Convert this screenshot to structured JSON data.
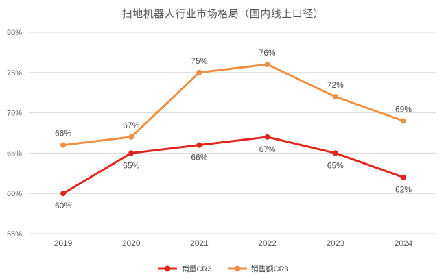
{
  "title": "扫地机器人行业市场格局（国内线上口径）",
  "chart_data": {
    "type": "line",
    "categories": [
      "2019",
      "2020",
      "2021",
      "2022",
      "2023",
      "2024"
    ],
    "series": [
      {
        "name": "销量CR3",
        "values": [
          60,
          65,
          66,
          67,
          65,
          62
        ],
        "color": "#e0251c",
        "label_position": "below"
      },
      {
        "name": "销售额CR3",
        "values": [
          66,
          67,
          75,
          76,
          72,
          69
        ],
        "color": "#ed9043",
        "label_position": "above"
      }
    ],
    "y_ticks": [
      55,
      60,
      65,
      70,
      75,
      80
    ],
    "ylim": [
      55,
      80
    ],
    "value_suffix": "%",
    "grid": true,
    "legend_position": "bottom",
    "xlabel": "",
    "ylabel": ""
  },
  "colors": {
    "gridline": "#d9d9d9",
    "axis_text": "#595959",
    "data_label": "#4d4d4d"
  }
}
